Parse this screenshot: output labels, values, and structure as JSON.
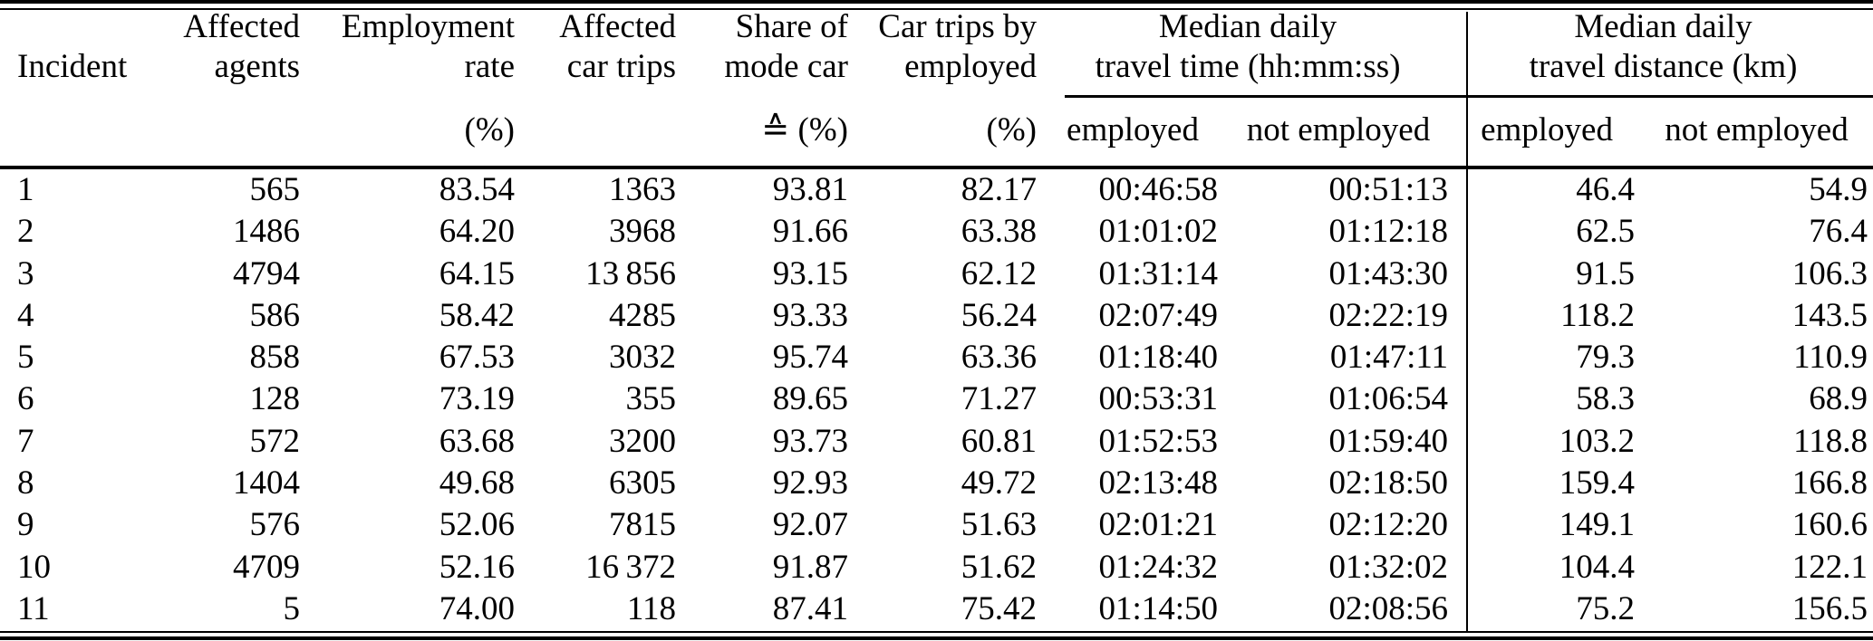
{
  "table": {
    "headers": [
      {
        "line1": "",
        "line2": "Incident"
      },
      {
        "line1": "Affected",
        "line2": "agents"
      },
      {
        "line1": "Employment",
        "line2": "rate"
      },
      {
        "line1": "Affected",
        "line2": "car trips"
      },
      {
        "line1": "Share of",
        "line2": "mode car"
      },
      {
        "line1": "Car trips by",
        "line2": "employed"
      }
    ],
    "groups": [
      {
        "line1": "Median daily",
        "line2": "travel time (hh:mm:ss)"
      },
      {
        "line1": "Median daily",
        "line2": "travel distance (km)"
      }
    ],
    "units": [
      "",
      "",
      "(%)",
      "",
      "≙ (%)",
      "(%)",
      "employed",
      "not employed",
      "employed",
      "not employed"
    ],
    "rows": [
      [
        "1",
        "565",
        "83.54",
        "1363",
        "93.81",
        "82.17",
        "00:46:58",
        "00:51:13",
        "46.4",
        "54.9"
      ],
      [
        "2",
        "1486",
        "64.20",
        "3968",
        "91.66",
        "63.38",
        "01:01:02",
        "01:12:18",
        "62.5",
        "76.4"
      ],
      [
        "3",
        "4794",
        "64.15",
        "13 856",
        "93.15",
        "62.12",
        "01:31:14",
        "01:43:30",
        "91.5",
        "106.3"
      ],
      [
        "4",
        "586",
        "58.42",
        "4285",
        "93.33",
        "56.24",
        "02:07:49",
        "02:22:19",
        "118.2",
        "143.5"
      ],
      [
        "5",
        "858",
        "67.53",
        "3032",
        "95.74",
        "63.36",
        "01:18:40",
        "01:47:11",
        "79.3",
        "110.9"
      ],
      [
        "6",
        "128",
        "73.19",
        "355",
        "89.65",
        "71.27",
        "00:53:31",
        "01:06:54",
        "58.3",
        "68.9"
      ],
      [
        "7",
        "572",
        "63.68",
        "3200",
        "93.73",
        "60.81",
        "01:52:53",
        "01:59:40",
        "103.2",
        "118.8"
      ],
      [
        "8",
        "1404",
        "49.68",
        "6305",
        "92.93",
        "49.72",
        "02:13:48",
        "02:18:50",
        "159.4",
        "166.8"
      ],
      [
        "9",
        "576",
        "52.06",
        "7815",
        "92.07",
        "51.63",
        "02:01:21",
        "02:12:20",
        "149.1",
        "160.6"
      ],
      [
        "10",
        "4709",
        "52.16",
        "16 372",
        "91.87",
        "51.62",
        "01:24:32",
        "01:32:02",
        "104.4",
        "122.1"
      ],
      [
        "11",
        "5",
        "74.00",
        "118",
        "87.41",
        "75.42",
        "01:14:50",
        "02:08:56",
        "75.2",
        "156.5"
      ]
    ]
  }
}
